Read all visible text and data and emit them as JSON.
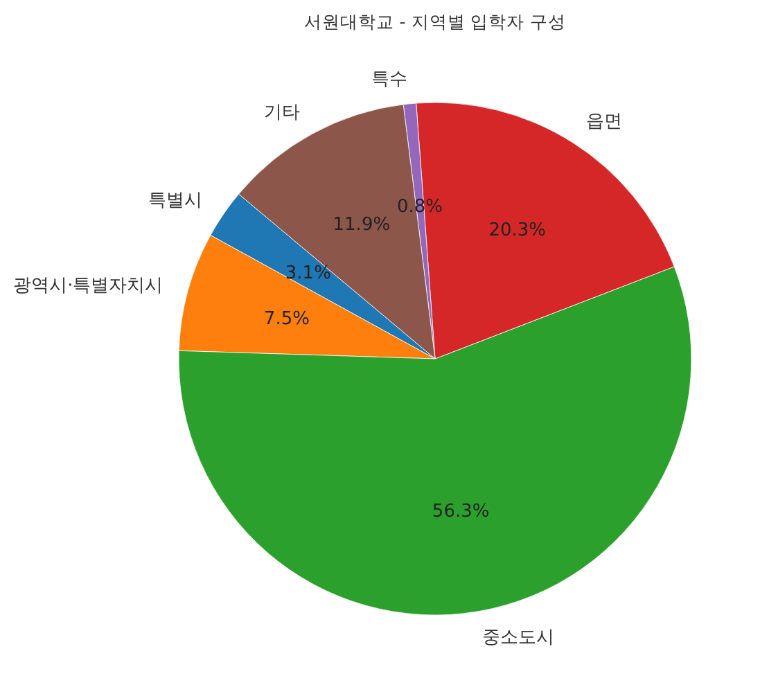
{
  "chart_data": {
    "type": "pie",
    "title": "서원대학교 - 지역별 입학자 구성",
    "categories": [
      "특별시",
      "광역시·특별자치시",
      "중소도시",
      "읍면",
      "특수",
      "기타"
    ],
    "values": [
      3.1,
      7.5,
      56.3,
      20.3,
      0.8,
      11.9
    ],
    "value_labels": [
      "3.1%",
      "7.5%",
      "56.3%",
      "20.3%",
      "0.8%",
      "11.9%"
    ],
    "colors": [
      "#1f77b4",
      "#ff7f0e",
      "#2ca02c",
      "#d62728",
      "#9467bd",
      "#8c564b"
    ],
    "legend": false
  }
}
